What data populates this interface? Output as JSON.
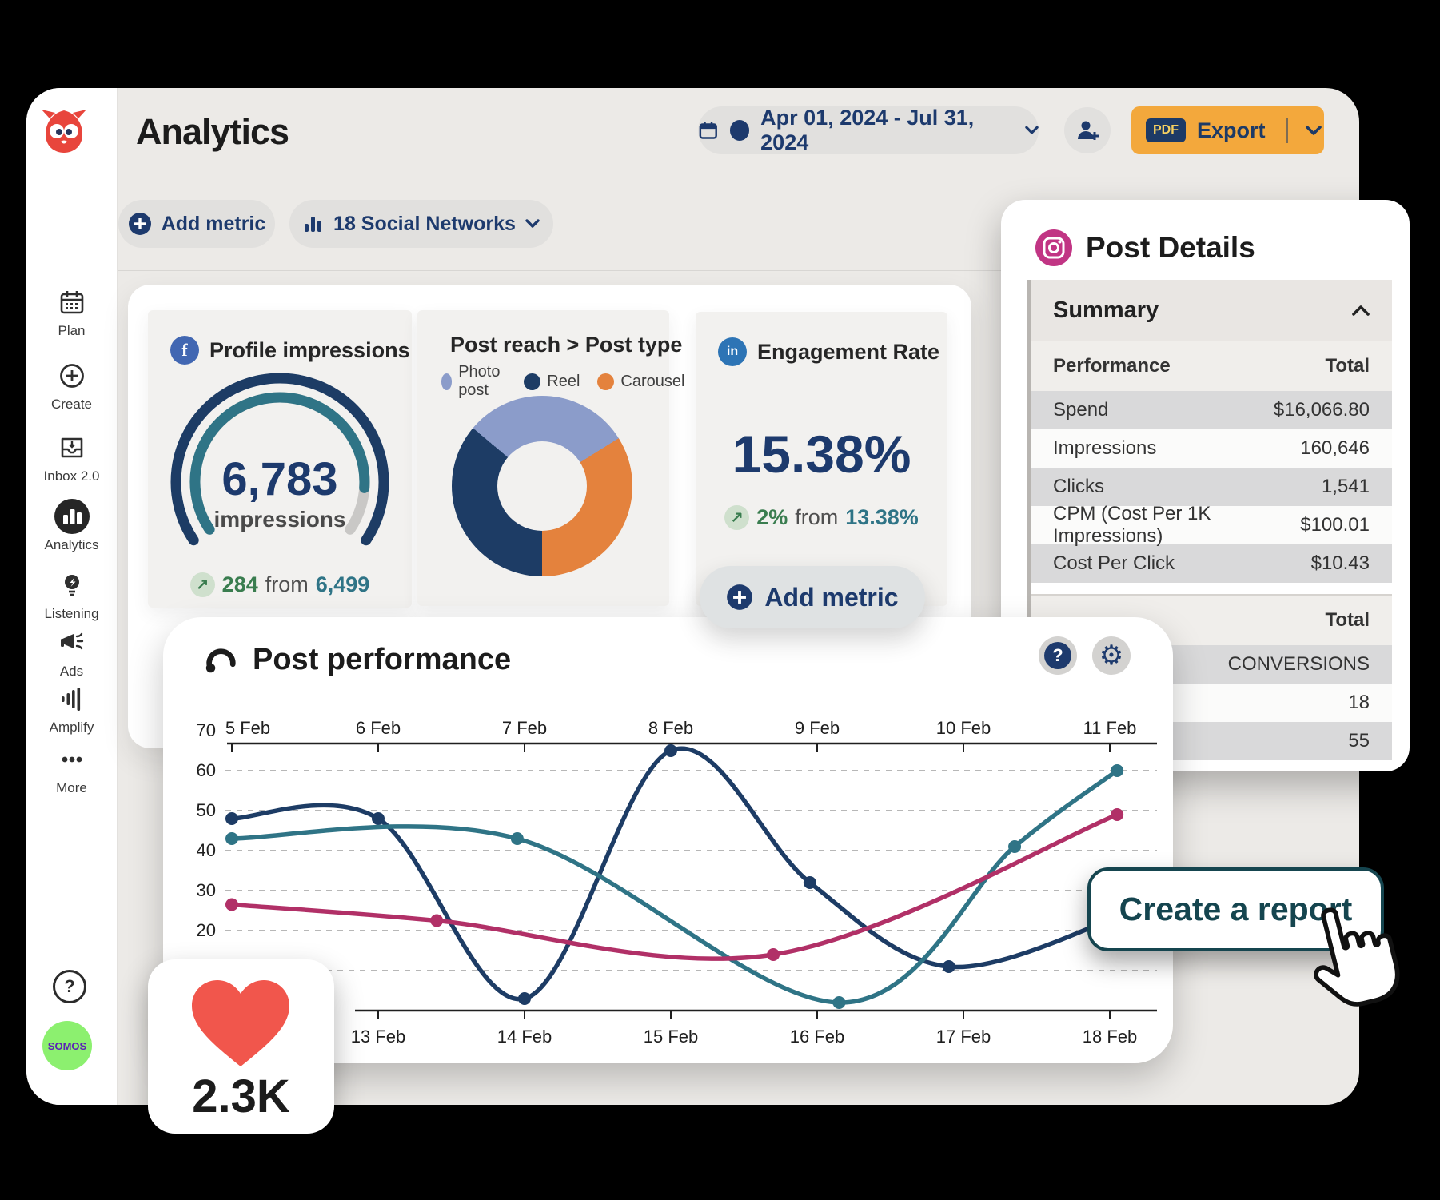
{
  "header": {
    "title": "Analytics",
    "date_range": "Apr 01, 2024 - Jul 31, 2024",
    "export_badge": "PDF",
    "export_label": "Export"
  },
  "sidebar": {
    "items": [
      {
        "label": "Plan",
        "icon": "calendar-icon",
        "active": false
      },
      {
        "label": "Create",
        "icon": "plus-circle-icon",
        "active": false
      },
      {
        "label": "Inbox 2.0",
        "icon": "inbox-icon",
        "active": false
      },
      {
        "label": "Analytics",
        "icon": "bar-chart-icon",
        "active": true
      },
      {
        "label": "Listening",
        "icon": "lightbulb-icon",
        "active": false
      },
      {
        "label": "Ads",
        "icon": "megaphone-icon",
        "active": false
      },
      {
        "label": "Amplify",
        "icon": "amplify-icon",
        "active": false
      },
      {
        "label": "More",
        "icon": "ellipsis-icon",
        "active": false
      }
    ],
    "help_label": "?",
    "badge": "SOMOS"
  },
  "toolbar": {
    "add_metric": "Add metric",
    "networks": "18 Social Networks"
  },
  "cards": {
    "impressions": {
      "network": "facebook",
      "title": "Profile impressions",
      "value": "6,783",
      "unit": "impressions",
      "delta": "284",
      "from_word": "from",
      "previous": "6,499",
      "arc_colors": {
        "outer": "#1d3c65",
        "inner": "#2f7486",
        "remainder": "#c9c8c6"
      }
    },
    "reach": {
      "network": "instagram",
      "title": "Post reach > Post type",
      "legend": [
        {
          "label": "Photo post",
          "color": "#8b9cca"
        },
        {
          "label": "Reel",
          "color": "#1d3c65"
        },
        {
          "label": "Carousel",
          "color": "#e4823d"
        }
      ],
      "donut_arcs": [
        {
          "label": "Photo post",
          "color": "#8b9cca",
          "from": 0,
          "to": 58
        },
        {
          "label": "Carousel",
          "color": "#e4823d",
          "from": 58,
          "to": 180
        },
        {
          "label": "Reel",
          "color": "#1d3c65",
          "from": 180,
          "to": 310
        },
        {
          "label": "Photo post",
          "color": "#8b9cca",
          "from": 310,
          "to": 360
        }
      ],
      "shares_pct": {
        "Photo post": 30,
        "Carousel": 34,
        "Reel": 36
      }
    },
    "engagement": {
      "network": "linkedin",
      "title": "Engagement Rate",
      "value": "15.38%",
      "delta": "2%",
      "from_word": "from",
      "previous": "13.38%"
    }
  },
  "floating_add_metric": "Add metric",
  "post_details": {
    "title": "Post Details",
    "summary_label": "Summary",
    "perf_label": "Performance",
    "total_label": "Total",
    "rows": [
      {
        "label": "Spend",
        "value": "$16,066.80",
        "shaded": true
      },
      {
        "label": "Impressions",
        "value": "160,646",
        "shaded": false
      },
      {
        "label": "Clicks",
        "value": "1,541",
        "shaded": true
      },
      {
        "label": "CPM (Cost Per 1K Impressions)",
        "value": "$100.01",
        "shaded": false
      },
      {
        "label": "Cost Per Click",
        "value": "$10.43",
        "shaded": true
      }
    ],
    "totals_label": "Total",
    "total_rows": [
      {
        "value": "CONVERSIONS",
        "shaded": true
      },
      {
        "value": "18",
        "shaded": false
      },
      {
        "value": "55",
        "shaded": true
      }
    ]
  },
  "chart_data": {
    "type": "line",
    "title": "Post performance",
    "top_axis_labels": [
      "5 Feb",
      "6 Feb",
      "7 Feb",
      "8 Feb",
      "9 Feb",
      "10 Feb",
      "11 Feb"
    ],
    "bottom_axis_labels": [
      "13 Feb",
      "14 Feb",
      "15 Feb",
      "16 Feb",
      "17 Feb",
      "18 Feb"
    ],
    "y_ticks": [
      70,
      60,
      50,
      40,
      30,
      20
    ],
    "grid_values": [
      60,
      50,
      40,
      30,
      20,
      10
    ],
    "ylim": [
      0,
      70
    ],
    "legend_position": "none",
    "series": [
      {
        "name": "series-navy",
        "color": "#1d3c65",
        "points": [
          {
            "d": 0,
            "v": 48,
            "dot": true
          },
          {
            "d": 1,
            "v": 48,
            "dot": true
          },
          {
            "d": 2,
            "v": 3,
            "dot": true
          },
          {
            "d": 3,
            "v": 65,
            "dot": true
          },
          {
            "d": 3.95,
            "v": 32,
            "dot": true
          },
          {
            "d": 4.9,
            "v": 11,
            "dot": true
          },
          {
            "d": 6.1,
            "v": 24,
            "dot": false
          }
        ]
      },
      {
        "name": "series-teal",
        "color": "#2f7486",
        "points": [
          {
            "d": 0,
            "v": 43,
            "dot": true
          },
          {
            "d": 1.95,
            "v": 43,
            "dot": true
          },
          {
            "d": 4.15,
            "v": 2,
            "dot": true
          },
          {
            "d": 5.35,
            "v": 41,
            "dot": true
          },
          {
            "d": 6.05,
            "v": 60,
            "dot": true
          }
        ]
      },
      {
        "name": "series-magenta",
        "color": "#b13067",
        "points": [
          {
            "d": 0,
            "v": 26.5,
            "dot": true
          },
          {
            "d": 1.4,
            "v": 22.5,
            "dot": true
          },
          {
            "d": 3.7,
            "v": 14,
            "dot": true
          },
          {
            "d": 6.05,
            "v": 49,
            "dot": true
          }
        ]
      }
    ]
  },
  "create_report_label": "Create a report",
  "likes": "2.3K"
}
